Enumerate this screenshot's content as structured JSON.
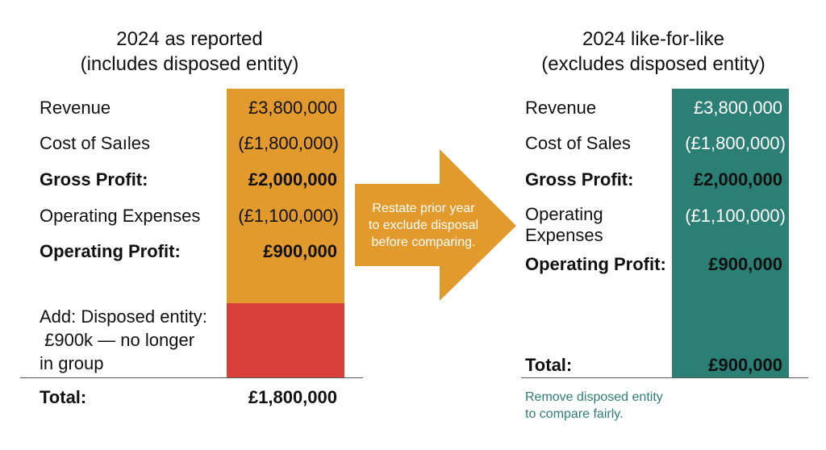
{
  "left": {
    "title_line1": "2024 as reported",
    "title_line2": "(includes disposed entity)",
    "rows": [
      {
        "label": "Revenue",
        "value": "£3,800,000"
      },
      {
        "label": "Cost of Saıles",
        "value": "(£1,800,000)"
      },
      {
        "label": "Gross Profit:",
        "value": "£2,000,000"
      },
      {
        "label": "Operating Expenses",
        "value": "(£1,100,000)"
      },
      {
        "label": "Operating Profit:",
        "value": "£900,000"
      }
    ],
    "add_line1": "Add: Disposed entity:",
    "add_line2": " £900k — no longer",
    "add_line3": "in group",
    "total_label": "Total:",
    "total_value": "£1,800,000"
  },
  "arrow": {
    "line1": "Restate prior year",
    "line2": "to exclude disposal",
    "line3": "before comparing."
  },
  "right": {
    "title_line1": "2024 like-for-like",
    "title_line2": "(excludes disposed entity)",
    "rows": [
      {
        "label": "Revenue",
        "value": "£3,800,000"
      },
      {
        "label": "Cost of Sales",
        "value": "(£1,800,000)"
      },
      {
        "label": "Gross Profit:",
        "value": "£2,000,000"
      },
      {
        "label": "Operating",
        "label2": "Expenses",
        "value": "(£1,100,000)"
      },
      {
        "label": "Operating Profit:",
        "value": "£900,000"
      }
    ],
    "total_label": "Total:",
    "total_value": "£900,000",
    "note_line1": "Remove disposed entity",
    "note_line2": "to compare fairly."
  },
  "colors": {
    "orange": "#e19a2b",
    "red": "#d9403a",
    "teal": "#2b7f74",
    "note_teal": "#2e7f75"
  }
}
